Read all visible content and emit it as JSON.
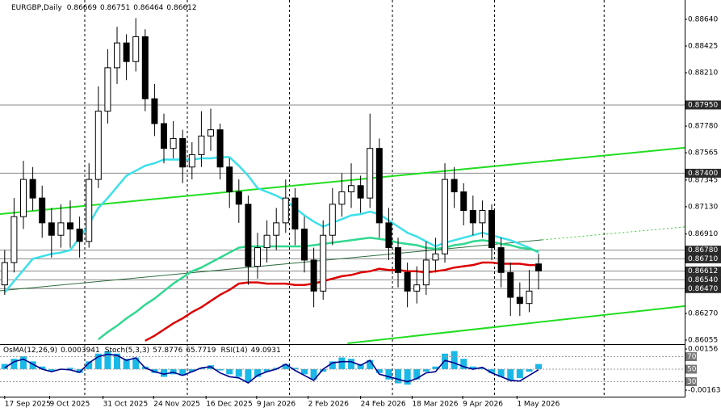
{
  "chart_data": {
    "type": "candlestick",
    "title": "EURGBP,Daily",
    "xlim": [
      -0.5,
      72.6
    ],
    "ylim": [
      0.86029,
      0.88796
    ],
    "xticks": [
      {
        "value": 0,
        "label": "17 Sep 2025"
      },
      {
        "value": 4.8,
        "label": "9 Oct 2025"
      },
      {
        "value": 10.5,
        "label": "31 Oct 2025"
      },
      {
        "value": 15.9,
        "label": "24 Nov 2025"
      },
      {
        "value": 21.5,
        "label": "16 Dec 2025"
      },
      {
        "value": 26.9,
        "label": "9 Jan 2026"
      },
      {
        "value": 32.4,
        "label": "2 Feb 2026"
      },
      {
        "value": 38,
        "label": "24 Feb 2026"
      },
      {
        "value": 43.5,
        "label": "18 Mar 2026"
      },
      {
        "value": 48.9,
        "label": "9 Apr 2026"
      },
      {
        "value": 54.7,
        "label": "1 May 2026"
      }
    ],
    "xgrid": [
      8.55,
      19.5,
      30.4,
      41.4,
      52.3,
      64.0
    ],
    "yticks": [
      {
        "value": 0.8864,
        "label": "0.88640"
      },
      0.88425,
      {
        "value": 0.8821,
        "label": "0.88210"
      },
      {
        "value": 0.8778,
        "label": "0.87780"
      },
      0.87565,
      0.87345,
      {
        "value": 0.8713,
        "label": "0.87130"
      },
      {
        "value": 0.8691,
        "label": "0.86910"
      },
      {
        "value": 0.8627,
        "label": "0.86270"
      },
      0.86055
    ],
    "levels": [
      {
        "value": 0.8795,
        "label": "0.87950"
      },
      {
        "value": 0.874,
        "label": "0.87400"
      },
      {
        "value": 0.8678,
        "label": "0.86780"
      },
      {
        "value": 0.8671,
        "label": "0.86710"
      },
      0.86612,
      {
        "value": 0.8654,
        "label": "0.86540"
      },
      {
        "value": 0.8647,
        "label": "0.86470"
      }
    ],
    "candles": {
      "open": [
        0.865,
        0.8668,
        0.8705,
        0.8735,
        0.872,
        0.87,
        0.869,
        0.87,
        0.8695,
        0.8685,
        0.8735,
        0.879,
        0.8825,
        0.8845,
        0.883,
        0.885,
        0.88,
        0.878,
        0.876,
        0.8768,
        0.8745,
        0.8755,
        0.877,
        0.8775,
        0.8745,
        0.8725,
        0.8715,
        0.8665,
        0.868,
        0.869,
        0.87,
        0.872,
        0.8695,
        0.867,
        0.8645,
        0.869,
        0.8715,
        0.8725,
        0.873,
        0.872,
        0.876,
        0.87,
        0.868,
        0.866,
        0.8645,
        0.865,
        0.867,
        0.8675,
        0.8735,
        0.8725,
        0.871,
        0.87,
        0.871,
        0.868,
        0.866,
        0.864,
        0.8635,
        0.86669
      ],
      "high": [
        0.8678,
        0.872,
        0.875,
        0.8745,
        0.873,
        0.8712,
        0.8715,
        0.8718,
        0.8705,
        0.8748,
        0.881,
        0.884,
        0.8858,
        0.8852,
        0.8865,
        0.8856,
        0.8812,
        0.8788,
        0.8782,
        0.8775,
        0.8765,
        0.879,
        0.8792,
        0.878,
        0.8752,
        0.8735,
        0.8722,
        0.8692,
        0.8702,
        0.8712,
        0.8735,
        0.8728,
        0.8705,
        0.868,
        0.8702,
        0.8728,
        0.874,
        0.8748,
        0.8738,
        0.8788,
        0.8768,
        0.8712,
        0.8688,
        0.8668,
        0.8665,
        0.8685,
        0.8688,
        0.8748,
        0.8745,
        0.8732,
        0.8722,
        0.8718,
        0.8715,
        0.8688,
        0.8668,
        0.8652,
        0.8662,
        0.86751
      ],
      "low": [
        0.8642,
        0.866,
        0.8695,
        0.871,
        0.8688,
        0.8672,
        0.868,
        0.868,
        0.8672,
        0.868,
        0.8728,
        0.878,
        0.8812,
        0.8815,
        0.8822,
        0.879,
        0.877,
        0.8748,
        0.8752,
        0.8732,
        0.8735,
        0.8745,
        0.8758,
        0.8735,
        0.8712,
        0.87,
        0.865,
        0.8655,
        0.8668,
        0.8678,
        0.8692,
        0.8682,
        0.866,
        0.8632,
        0.8638,
        0.8682,
        0.8705,
        0.8712,
        0.8708,
        0.8712,
        0.8688,
        0.867,
        0.8648,
        0.8632,
        0.8635,
        0.8642,
        0.866,
        0.8668,
        0.8712,
        0.8698,
        0.869,
        0.8688,
        0.867,
        0.8648,
        0.8625,
        0.8625,
        0.8628,
        0.86464
      ],
      "close": [
        0.8668,
        0.8705,
        0.8735,
        0.872,
        0.87,
        0.869,
        0.87,
        0.8695,
        0.8685,
        0.8735,
        0.879,
        0.8825,
        0.8845,
        0.883,
        0.885,
        0.88,
        0.878,
        0.876,
        0.8768,
        0.8745,
        0.8755,
        0.877,
        0.8775,
        0.8745,
        0.8725,
        0.8715,
        0.8665,
        0.868,
        0.869,
        0.87,
        0.872,
        0.8695,
        0.867,
        0.8645,
        0.869,
        0.8715,
        0.8725,
        0.873,
        0.872,
        0.876,
        0.87,
        0.868,
        0.866,
        0.8645,
        0.865,
        0.867,
        0.8675,
        0.8735,
        0.8725,
        0.871,
        0.87,
        0.871,
        0.868,
        0.866,
        0.864,
        0.8635,
        0.8645,
        0.86612
      ]
    },
    "series": [
      {
        "color": "#3ce0ea",
        "values": [
          0.8644,
          0.8653,
          0.8662,
          0.8671,
          0.8673,
          0.8675,
          0.8676,
          0.8678,
          0.8688,
          0.8699,
          0.8712,
          0.872,
          0.8729,
          0.8738,
          0.8742,
          0.8746,
          0.8748,
          0.8751,
          0.8751,
          0.8751,
          0.8751,
          0.8752,
          0.8752,
          0.8753,
          0.8753,
          0.8746,
          0.8738,
          0.8728,
          0.8725,
          0.8722,
          0.8718,
          0.8712,
          0.8706,
          0.8701,
          0.8697,
          0.87,
          0.8703,
          0.8706,
          0.8707,
          0.8709,
          0.8707,
          0.8702,
          0.8697,
          0.8692,
          0.8689,
          0.8685,
          0.8681,
          0.8684,
          0.8686,
          0.8688,
          0.869,
          0.8692,
          0.869,
          0.8688,
          0.8686,
          0.8683,
          0.868,
          0.8676
        ]
      },
      {
        "color": "#30d890",
        "values": [
          null,
          null,
          null,
          null,
          null,
          null,
          null,
          null,
          null,
          null,
          0.8606,
          0.8612,
          0.8617,
          0.8623,
          0.8628,
          0.8634,
          0.8639,
          0.8645,
          0.8651,
          0.8656,
          0.8661,
          0.8664,
          0.8668,
          0.8672,
          0.8676,
          0.868,
          0.8681,
          0.8681,
          0.8681,
          0.8681,
          0.8681,
          0.8681,
          0.8681,
          0.8682,
          0.8683,
          0.8684,
          0.8685,
          0.8686,
          0.8687,
          0.8688,
          0.8687,
          0.8686,
          0.8684,
          0.8683,
          0.8682,
          0.868,
          0.8679,
          0.868,
          0.8682,
          0.8683,
          0.8685,
          0.8686,
          0.8685,
          0.8683,
          0.8682,
          0.868,
          0.8679,
          0.8677
        ]
      },
      {
        "color": "#dd0000",
        "values": [
          null,
          null,
          null,
          null,
          null,
          null,
          null,
          null,
          null,
          null,
          null,
          null,
          null,
          null,
          null,
          0.8605,
          0.8609,
          0.8614,
          0.8619,
          0.8623,
          0.8628,
          0.8632,
          0.8637,
          0.8642,
          0.8646,
          0.8651,
          0.8652,
          0.8652,
          0.8651,
          0.8651,
          0.8651,
          0.865,
          0.865,
          0.8651,
          0.8653,
          0.8655,
          0.8657,
          0.8658,
          0.866,
          0.8661,
          0.8663,
          0.8662,
          0.8662,
          0.8661,
          0.8661,
          0.866,
          0.8661,
          0.8662,
          0.8664,
          0.8665,
          0.8666,
          0.8668,
          0.8668,
          0.8667,
          0.8667,
          0.8667,
          0.8666,
          0.8666
        ]
      }
    ],
    "trendlines": [
      {
        "color": "#22dd22",
        "width": 2,
        "points": [
          [
            -0.5,
            0.87071
          ],
          [
            72.6,
            0.87605
          ]
        ]
      },
      {
        "color": "#22dd22",
        "width": 2,
        "points": [
          [
            36.6,
            0.86029
          ],
          [
            72.6,
            0.86329
          ]
        ]
      },
      {
        "color": "#2f6f3f",
        "width": 1,
        "points": [
          [
            -0.5,
            0.86453
          ],
          [
            57.4,
            0.86863
          ]
        ]
      },
      {
        "color": "#22dd22",
        "width": 1,
        "dotted": true,
        "points": [
          [
            57.4,
            0.86863
          ],
          [
            72.6,
            0.86967
          ]
        ]
      }
    ],
    "indicator": {
      "osma_name": "OsMA(12,26,9)",
      "stoch_name": "Stoch(5,3,3)",
      "stoch_main": 57.8776,
      "stoch_signal": 65.7719,
      "rsi_name": "RSI(14)",
      "osma_lim": [
        -0.00207,
        0.00181
      ],
      "osma_ticks": [
        0.00156,
        -0.001634
      ],
      "osma_color": "#19b8e6",
      "rsi_lim": [
        7.4,
        87.4
      ],
      "rsi_ticks": [
        70,
        50,
        30
      ],
      "rsi_color": "#00008b",
      "osma": [
        0.0004,
        0.0008,
        0.001,
        0.0006,
        0.0002,
        -0.0002,
        0,
        0.0001,
        -0.0003,
        0.0006,
        0.0012,
        0.0014,
        0.0012,
        0.0008,
        0.0009,
        0.0002,
        -0.0003,
        -0.0006,
        -0.0004,
        -0.0005,
        -0.0002,
        0.0001,
        0.0003,
        -0.0001,
        -0.0004,
        -0.0006,
        -0.001,
        -0.0006,
        -0.0002,
        0.0001,
        0.0004,
        0.0001,
        -0.0004,
        -0.0008,
        -0.0002,
        0.0006,
        0.0009,
        0.0008,
        0.0004,
        0.0007,
        -0.0003,
        -0.0008,
        -0.0011,
        -0.0012,
        -0.0008,
        -0.0002,
        0.0002,
        0.0012,
        0.0014,
        0.0008,
        0.0002,
        0.0001,
        -0.0003,
        -0.0006,
        -0.0009,
        -0.0007,
        -0.0002,
        0.0003941
      ],
      "rsi": [
        52,
        62,
        66,
        58,
        50,
        46,
        50,
        49,
        45,
        60,
        70,
        74,
        72,
        64,
        68,
        52,
        46,
        42,
        45,
        40,
        46,
        52,
        54,
        44,
        38,
        36,
        28,
        40,
        46,
        50,
        58,
        48,
        40,
        32,
        50,
        60,
        62,
        62,
        56,
        64,
        42,
        38,
        34,
        30,
        35,
        44,
        46,
        64,
        60,
        54,
        50,
        53,
        44,
        38,
        32,
        31,
        40,
        49.0931
      ]
    }
  }
}
